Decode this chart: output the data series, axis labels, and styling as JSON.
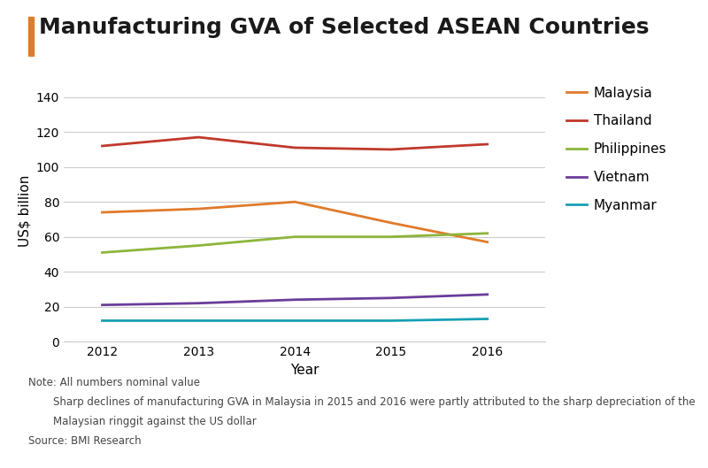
{
  "title": "Manufacturing GVA of Selected ASEAN Countries",
  "title_fontsize": 18,
  "title_color": "#1a1a1a",
  "title_accent_color": "#e07b2a",
  "xlabel": "Year",
  "ylabel": "US$ billion",
  "years": [
    2012,
    2013,
    2014,
    2015,
    2016
  ],
  "series": [
    {
      "name": "Malaysia",
      "color": "#e07b2a",
      "values": [
        74,
        76,
        80,
        68,
        57
      ]
    },
    {
      "name": "Thailand",
      "color": "#c0392b",
      "values": [
        112,
        117,
        111,
        110,
        113
      ]
    },
    {
      "name": "Philippines",
      "color": "#8db53a",
      "values": [
        51,
        55,
        60,
        60,
        62
      ]
    },
    {
      "name": "Vietnam",
      "color": "#6a3d9a",
      "values": [
        21,
        22,
        24,
        25,
        27
      ]
    },
    {
      "name": "Myanmar",
      "color": "#17a0b4",
      "values": [
        12,
        12,
        12,
        12,
        13
      ]
    }
  ],
  "ylim": [
    0,
    150
  ],
  "yticks": [
    0,
    20,
    40,
    60,
    80,
    100,
    120,
    140
  ],
  "background_color": "#ffffff",
  "grid_color": "#cccccc",
  "notes": [
    {
      "text": "Note: All numbers nominal value",
      "indent": false
    },
    {
      "text": "Sharp declines of manufacturing GVA in Malaysia in 2015 and 2016 were partly attributed to the sharp depreciation of the",
      "indent": true
    },
    {
      "text": "Malaysian ringgit against the US dollar",
      "indent": true
    },
    {
      "text": "Source: BMI Research",
      "indent": false
    }
  ],
  "line_width": 2.0,
  "legend_fontsize": 11,
  "axis_label_fontsize": 11,
  "tick_fontsize": 10,
  "note_fontsize": 8.5
}
